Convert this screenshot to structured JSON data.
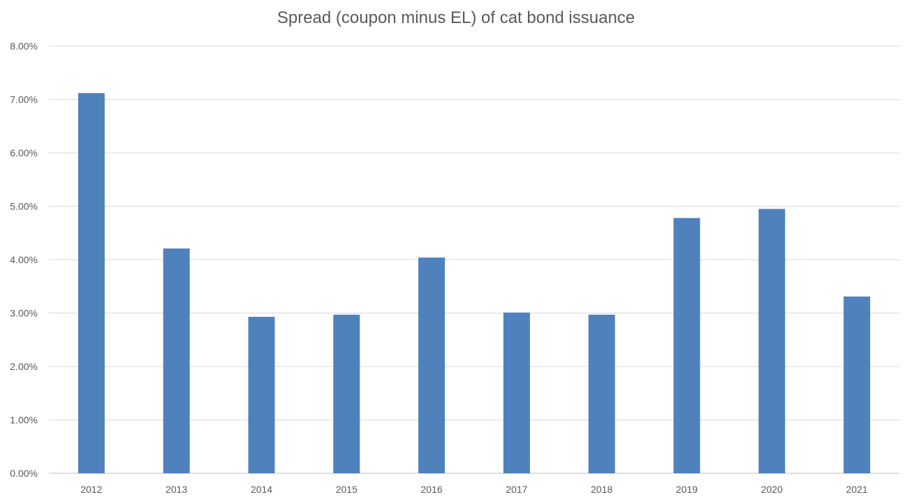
{
  "chart_data": {
    "type": "bar",
    "title": "Spread (coupon minus EL) of cat bond issuance",
    "xlabel": "",
    "ylabel": "",
    "categories": [
      "2012",
      "2013",
      "2014",
      "2015",
      "2016",
      "2017",
      "2018",
      "2019",
      "2020",
      "2021"
    ],
    "values": [
      7.12,
      4.21,
      2.93,
      2.97,
      4.04,
      3.01,
      2.97,
      4.78,
      4.95,
      3.31
    ],
    "value_unit": "%",
    "ylim": [
      0,
      8
    ],
    "yticks": [
      "0.00%",
      "1.00%",
      "2.00%",
      "3.00%",
      "4.00%",
      "5.00%",
      "6.00%",
      "7.00%",
      "8.00%"
    ],
    "grid": true,
    "legend": "none",
    "colors": {
      "bar": "#4f81bd",
      "grid": "#d9d9d9",
      "text": "#595959"
    }
  }
}
